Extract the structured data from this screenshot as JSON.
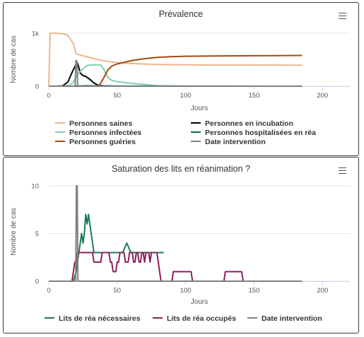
{
  "chart_data": [
    {
      "type": "line",
      "title": "Prévalence",
      "xlabel": "Jours",
      "ylabel": "Nombre de cas",
      "xlim": [
        0,
        220
      ],
      "ylim": [
        0,
        1000
      ],
      "x_ticks": [
        0,
        50,
        100,
        150,
        200
      ],
      "y_ticks": [
        {
          "v": 0,
          "label": "0"
        },
        {
          "v": 1000,
          "label": "1k"
        }
      ],
      "legend_position": "bottom",
      "series": [
        {
          "name": "Personnes saines",
          "color": "#f0b48c",
          "points": [
            [
              0,
              0
            ],
            [
              1,
              1000
            ],
            [
              5,
              1000
            ],
            [
              10,
              990
            ],
            [
              14,
              960
            ],
            [
              18,
              800
            ],
            [
              20,
              610
            ],
            [
              24,
              580
            ],
            [
              30,
              540
            ],
            [
              35,
              510
            ],
            [
              40,
              480
            ],
            [
              45,
              460
            ],
            [
              50,
              445
            ],
            [
              55,
              435
            ],
            [
              60,
              428
            ],
            [
              70,
              418
            ],
            [
              80,
              410
            ],
            [
              100,
              403
            ],
            [
              120,
              400
            ],
            [
              150,
              398
            ],
            [
              185,
              397
            ]
          ]
        },
        {
          "name": "Personnes en incubation",
          "color": "#000000",
          "points": [
            [
              0,
              0
            ],
            [
              5,
              0
            ],
            [
              10,
              5
            ],
            [
              14,
              80
            ],
            [
              17,
              260
            ],
            [
              20,
              420
            ],
            [
              21,
              430
            ],
            [
              22,
              350
            ],
            [
              23,
              250
            ],
            [
              25,
              200
            ],
            [
              27,
              185
            ],
            [
              30,
              130
            ],
            [
              33,
              60
            ],
            [
              36,
              20
            ],
            [
              40,
              5
            ],
            [
              50,
              0
            ],
            [
              185,
              0
            ]
          ]
        },
        {
          "name": "Personnes infectées",
          "color": "#7fcfb1",
          "points": [
            [
              0,
              0
            ],
            [
              10,
              0
            ],
            [
              15,
              20
            ],
            [
              18,
              70
            ],
            [
              20,
              180
            ],
            [
              22,
              250
            ],
            [
              25,
              330
            ],
            [
              28,
              390
            ],
            [
              30,
              400
            ],
            [
              33,
              405
            ],
            [
              38,
              400
            ],
            [
              40,
              330
            ],
            [
              43,
              170
            ],
            [
              46,
              110
            ],
            [
              50,
              85
            ],
            [
              55,
              70
            ],
            [
              60,
              55
            ],
            [
              70,
              30
            ],
            [
              80,
              10
            ],
            [
              90,
              5
            ],
            [
              100,
              0
            ],
            [
              185,
              0
            ]
          ]
        },
        {
          "name": "Personnes hospitalisées en réa",
          "color": "#0d6b4d",
          "points": [
            [
              0,
              0
            ],
            [
              18,
              0
            ],
            [
              20,
              4
            ],
            [
              28,
              8
            ],
            [
              35,
              5
            ],
            [
              50,
              3
            ],
            [
              60,
              2
            ],
            [
              185,
              0
            ]
          ]
        },
        {
          "name": "Personnes guéries",
          "color": "#a34b10",
          "points": [
            [
              0,
              0
            ],
            [
              30,
              0
            ],
            [
              35,
              5
            ],
            [
              37,
              20
            ],
            [
              40,
              150
            ],
            [
              43,
              300
            ],
            [
              46,
              380
            ],
            [
              50,
              420
            ],
            [
              55,
              450
            ],
            [
              60,
              480
            ],
            [
              70,
              520
            ],
            [
              80,
              545
            ],
            [
              90,
              558
            ],
            [
              100,
              565
            ],
            [
              120,
              570
            ],
            [
              150,
              575
            ],
            [
              185,
              580
            ]
          ]
        },
        {
          "name": "Date intervention",
          "color": "#808080",
          "points": [
            [
              0,
              0
            ],
            [
              19.3,
              0
            ],
            [
              19.8,
              480
            ],
            [
              20.6,
              480
            ],
            [
              21.1,
              0
            ],
            [
              185,
              0
            ]
          ]
        }
      ]
    },
    {
      "type": "line",
      "title": "Saturation des lits en réanimation ?",
      "xlabel": "Jours",
      "ylabel": "Nombre de cas",
      "xlim": [
        0,
        220
      ],
      "ylim": [
        0,
        10
      ],
      "x_ticks": [
        0,
        50,
        100,
        150,
        200
      ],
      "y_ticks": [
        {
          "v": 0,
          "label": "0"
        },
        {
          "v": 5,
          "label": "5"
        },
        {
          "v": 10,
          "label": "10"
        }
      ],
      "legend_position": "bottom",
      "series": [
        {
          "name": "Lits de réa nécessaires",
          "color": "#1c7a52",
          "points": [
            [
              0,
              0
            ],
            [
              18,
              0
            ],
            [
              20,
              1
            ],
            [
              21,
              2
            ],
            [
              22,
              3
            ],
            [
              23,
              4
            ],
            [
              24,
              5
            ],
            [
              25,
              4
            ],
            [
              26,
              5
            ],
            [
              27,
              7
            ],
            [
              28,
              6
            ],
            [
              29,
              7
            ],
            [
              30,
              6
            ],
            [
              31,
              5
            ],
            [
              32,
              4
            ],
            [
              33,
              3
            ],
            [
              34,
              3
            ],
            [
              54,
              3
            ],
            [
              57,
              4
            ],
            [
              60,
              3
            ],
            [
              84,
              3
            ]
          ]
        },
        {
          "name": "Lits de réa occupés",
          "color": "#8c1f5e",
          "points": [
            [
              0,
              0
            ],
            [
              17,
              0
            ],
            [
              18,
              1
            ],
            [
              19,
              2
            ],
            [
              20,
              2
            ],
            [
              21,
              3
            ],
            [
              32,
              3
            ],
            [
              33,
              2
            ],
            [
              38,
              2
            ],
            [
              39,
              3
            ],
            [
              44,
              3
            ],
            [
              45,
              2
            ],
            [
              46,
              2
            ],
            [
              47,
              1
            ],
            [
              49,
              1
            ],
            [
              50,
              2
            ],
            [
              51,
              2
            ],
            [
              52,
              3
            ],
            [
              55,
              3
            ],
            [
              56,
              2
            ],
            [
              58,
              2
            ],
            [
              59,
              3
            ],
            [
              61,
              3
            ],
            [
              62,
              2
            ],
            [
              63,
              2
            ],
            [
              64,
              3
            ],
            [
              65,
              3
            ],
            [
              66,
              2
            ],
            [
              67,
              2
            ],
            [
              68,
              3
            ],
            [
              69,
              3
            ],
            [
              70,
              2
            ],
            [
              71,
              3
            ],
            [
              73,
              3
            ],
            [
              74,
              2
            ],
            [
              75,
              3
            ],
            [
              79,
              3
            ],
            [
              80,
              2
            ],
            [
              81,
              1
            ],
            [
              82,
              0
            ],
            [
              90,
              0
            ],
            [
              91,
              1
            ],
            [
              104,
              1
            ],
            [
              105,
              0
            ],
            [
              128,
              0
            ],
            [
              129,
              1
            ],
            [
              141,
              1
            ],
            [
              142,
              0
            ],
            [
              185,
              0
            ]
          ]
        },
        {
          "name": "Date intervention",
          "color": "#808080",
          "points": [
            [
              0,
              0
            ],
            [
              19.7,
              0
            ],
            [
              20.2,
              10
            ],
            [
              20.8,
              10
            ],
            [
              21.3,
              0
            ],
            [
              185,
              0
            ]
          ]
        }
      ]
    }
  ]
}
